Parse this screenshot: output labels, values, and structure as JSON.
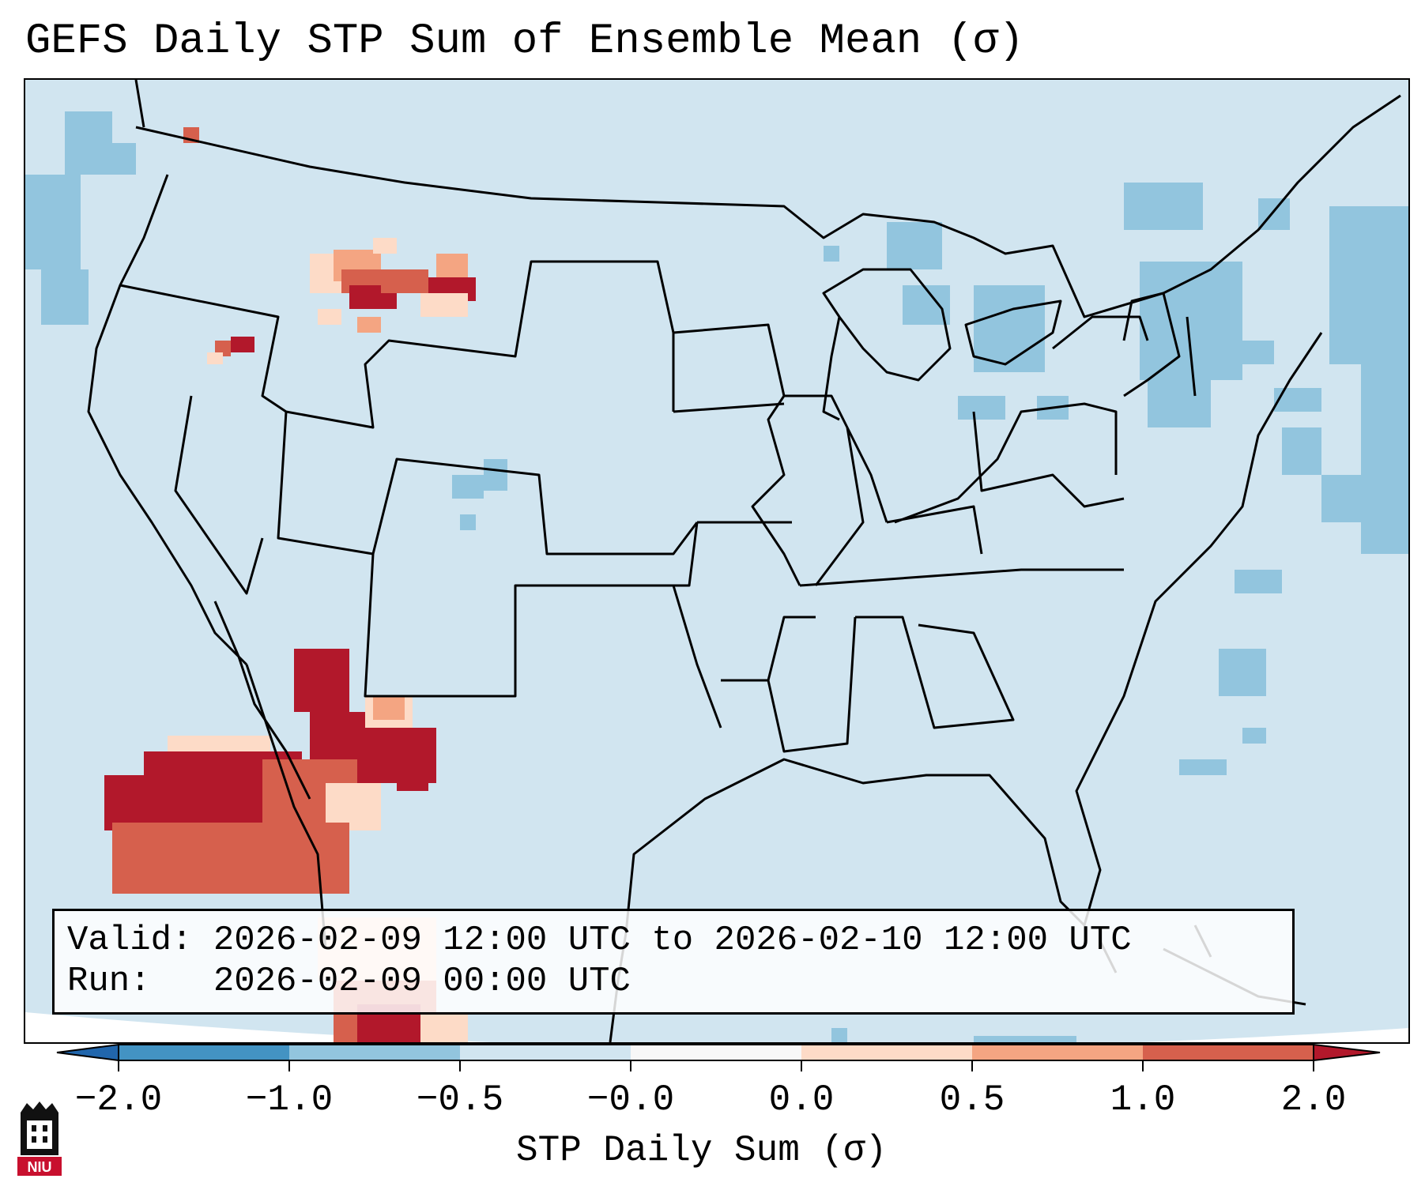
{
  "title": "GEFS Daily STP Sum of Ensemble Mean (σ)",
  "info": {
    "valid_label": "Valid:",
    "valid_text": "2026-02-09 12:00 UTC to 2026-02-10 12:00 UTC",
    "run_label": "Run:",
    "run_text": "2026-02-09 00:00 UTC"
  },
  "colorbar": {
    "label": "STP Daily Sum (σ)",
    "ticks": [
      "−2.0",
      "−1.0",
      "−0.5",
      "−0.0",
      "0.0",
      "0.5",
      "1.0",
      "2.0"
    ],
    "segment_colors": [
      "#4393c3",
      "#92c5de",
      "#d1e5f0",
      "#f7f7f7",
      "#fddbc7",
      "#f4a582",
      "#d6604d"
    ],
    "extend_low_color": "#2166ac",
    "extend_high_color": "#b2182b"
  },
  "map": {
    "background_color": "#d1e5f0",
    "land_border_color": "#000000",
    "anomaly_colors": {
      "light_blue": "#92c5de",
      "light_red": "#fddbc7",
      "red": "#d6604d",
      "dark_red": "#b2182b",
      "salmon": "#f4a582"
    }
  },
  "logo": {
    "text": "NIU"
  }
}
